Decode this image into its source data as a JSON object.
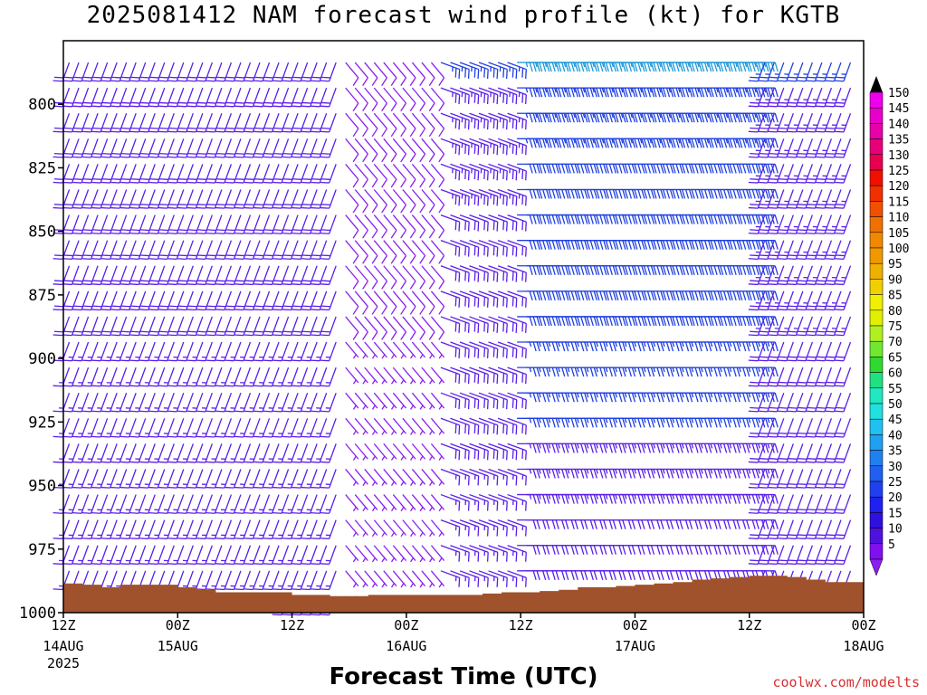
{
  "title": "2025081412 NAM forecast wind profile (kt) for KGTB",
  "credit": "coolwx.com/modelts",
  "chart_data": {
    "type": "wind_barb_time_height",
    "title": "2025081412 NAM forecast wind profile (kt) for KGTB",
    "xlabel": "Forecast Time (UTC)",
    "ylabel": "",
    "y_axis": {
      "ticks": [
        800,
        825,
        850,
        875,
        900,
        925,
        950,
        975,
        1000
      ],
      "range_hpa": [
        775,
        1000
      ],
      "inverted": true
    },
    "x_axis": {
      "range_hours": [
        0,
        84
      ],
      "ticks": [
        {
          "hour": 0,
          "label": "12Z",
          "date": "14AUG",
          "year": "2025"
        },
        {
          "hour": 12,
          "label": "00Z",
          "date": "15AUG",
          "year": ""
        },
        {
          "hour": 24,
          "label": "12Z",
          "date": "",
          "year": ""
        },
        {
          "hour": 36,
          "label": "00Z",
          "date": "16AUG",
          "year": ""
        },
        {
          "hour": 48,
          "label": "12Z",
          "date": "",
          "year": ""
        },
        {
          "hour": 60,
          "label": "00Z",
          "date": "17AUG",
          "year": ""
        },
        {
          "hour": 72,
          "label": "12Z",
          "date": "",
          "year": ""
        },
        {
          "hour": 84,
          "label": "00Z",
          "date": "18AUG",
          "year": ""
        }
      ]
    },
    "levels_hpa": [
      780,
      790,
      800,
      810,
      820,
      830,
      840,
      850,
      860,
      870,
      880,
      890,
      900,
      910,
      920,
      930,
      940,
      950,
      960,
      970,
      980,
      990
    ],
    "wind_regimes": [
      {
        "hours": [
          0,
          30
        ],
        "direction_deg": 200,
        "speed_kt": [
          15,
          20
        ]
      },
      {
        "hours": [
          30,
          40
        ],
        "direction_deg": 140,
        "speed_kt": [
          5,
          10
        ]
      },
      {
        "hours": [
          40,
          48
        ],
        "direction_deg": 110,
        "speed_kt": [
          15,
          25
        ]
      },
      {
        "hours": [
          48,
          74
        ],
        "direction_deg": 90,
        "speed_kt": [
          20,
          35
        ]
      },
      {
        "hours": [
          74,
          84
        ],
        "direction_deg": 200,
        "speed_kt": [
          20,
          25
        ]
      }
    ],
    "terrain": {
      "color": "#a0522d",
      "hours": [
        0,
        2,
        4,
        6,
        8,
        10,
        12,
        14,
        16,
        18,
        20,
        22,
        24,
        26,
        28,
        30,
        32,
        34,
        36,
        38,
        40,
        42,
        44,
        46,
        48,
        50,
        52,
        54,
        56,
        58,
        60,
        62,
        64,
        66,
        68,
        70,
        72,
        74,
        76,
        78,
        80,
        82,
        84
      ],
      "surface_pressure_hpa": [
        988.5,
        989,
        990,
        989,
        989,
        989,
        990,
        991,
        992,
        992,
        992,
        992,
        993,
        993,
        993.5,
        993.5,
        993,
        993,
        993,
        993,
        993,
        993,
        992.5,
        992,
        992,
        991.5,
        991,
        990,
        990,
        989.5,
        989,
        988.5,
        988,
        987,
        986.5,
        986,
        985.5,
        985.5,
        986,
        987,
        988,
        988,
        989
      ]
    },
    "colorbar": {
      "labels": [
        150,
        145,
        140,
        135,
        130,
        125,
        120,
        115,
        110,
        105,
        100,
        95,
        90,
        85,
        80,
        75,
        70,
        65,
        60,
        55,
        50,
        45,
        40,
        35,
        30,
        25,
        20,
        15,
        10,
        5
      ],
      "colors": [
        "#ee00ee",
        "#e800c8",
        "#e800a8",
        "#e80078",
        "#e80050",
        "#f01000",
        "#f03000",
        "#f05000",
        "#f07000",
        "#f08800",
        "#f09800",
        "#f0b000",
        "#f0d000",
        "#f0f000",
        "#e0f000",
        "#b0f020",
        "#70e830",
        "#30d830",
        "#20e080",
        "#20e8c0",
        "#20e0e0",
        "#20c0f0",
        "#20a0f0",
        "#2080f0",
        "#2060f0",
        "#2040f0",
        "#2020f0",
        "#3010e0",
        "#5010e0",
        "#8010f0"
      ],
      "cap_top_color": "#000000",
      "cap_bottom_color": "#8a1ef0"
    }
  }
}
